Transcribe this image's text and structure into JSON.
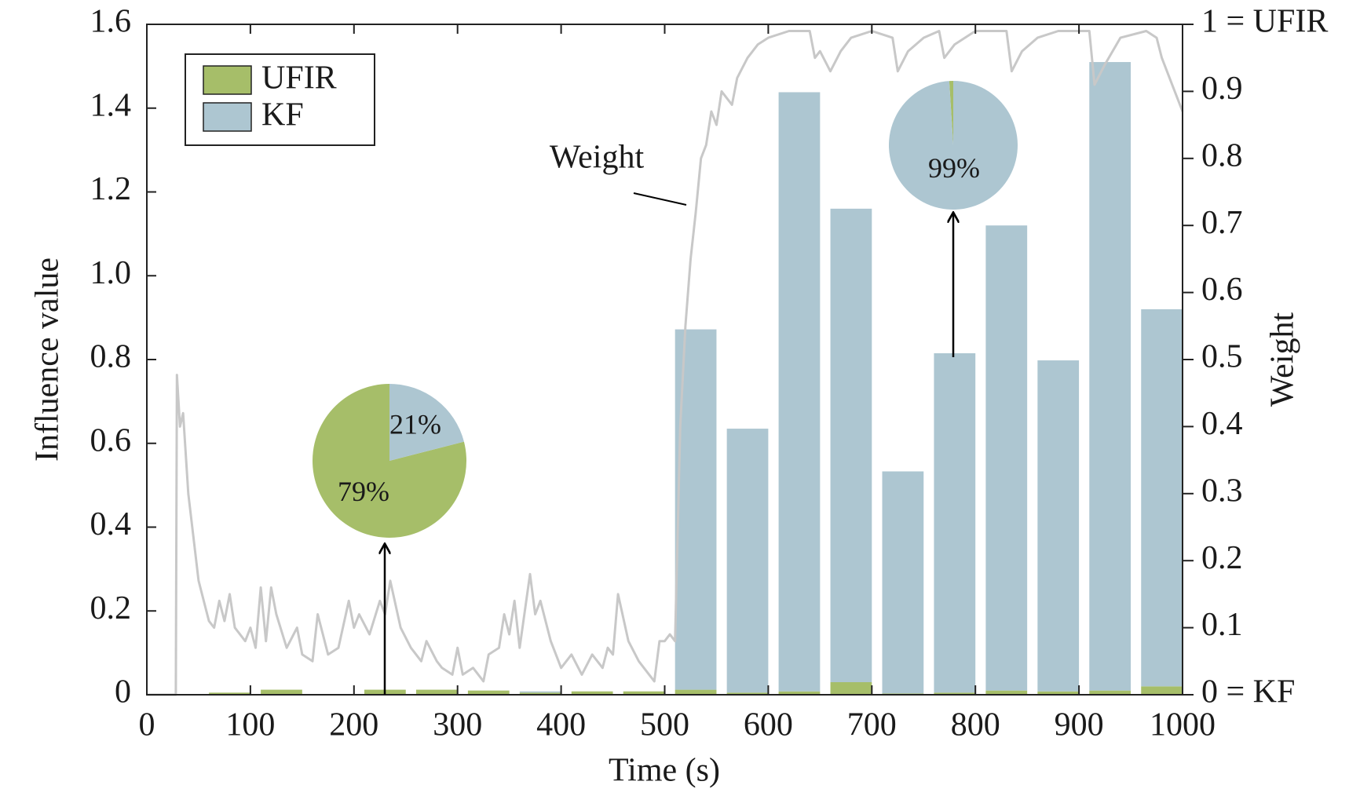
{
  "chart_data": {
    "type": "bar",
    "stacked": true,
    "xlabel": "Time (s)",
    "ylabel": "Influence value",
    "y2label": "Weight",
    "xlim": [
      0,
      1000
    ],
    "xticks": [
      0,
      100,
      200,
      300,
      400,
      500,
      600,
      700,
      800,
      900,
      1000
    ],
    "ylim": [
      0,
      1.6
    ],
    "yticks": [
      0,
      0.2,
      0.4,
      0.6,
      0.8,
      {
        "value": 1,
        "label": "1.0"
      },
      1.2,
      1.4,
      1.6
    ],
    "y2lim": [
      0,
      1
    ],
    "y2ticks": [
      {
        "value": 0,
        "label": "0 = KF"
      },
      0.1,
      0.2,
      0.3,
      0.4,
      0.5,
      0.6,
      0.7,
      0.8,
      0.9,
      {
        "value": 1,
        "label": "1 = UFIR"
      }
    ],
    "legend": "upper left",
    "x": [
      30,
      80,
      130,
      180,
      230,
      280,
      330,
      380,
      430,
      480,
      530,
      580,
      630,
      680,
      730,
      780,
      830,
      880,
      930,
      980
    ],
    "series": [
      {
        "name": "UFIR",
        "color": "#a6be69",
        "values": [
          0,
          0.005,
          0.012,
          0,
          0.012,
          0.012,
          0.01,
          0.005,
          0.008,
          0.008,
          0.012,
          0.005,
          0.008,
          0.03,
          0.003,
          0.005,
          0.01,
          0.008,
          0.01,
          0.02
        ]
      },
      {
        "name": "KF",
        "color": "#adc6d1",
        "values": [
          0,
          0,
          0,
          0,
          0,
          0,
          0,
          0.003,
          0,
          0,
          0.86,
          0.63,
          1.43,
          1.13,
          0.53,
          0.81,
          1.11,
          0.79,
          1.5,
          0.9
        ]
      }
    ],
    "line": {
      "type": "line",
      "name": "Weight",
      "axis": "y2",
      "color": "#c8c8c8",
      "x": [
        0,
        28,
        29,
        32,
        35,
        40,
        50,
        60,
        65,
        70,
        75,
        80,
        85,
        95,
        100,
        105,
        110,
        115,
        120,
        125,
        135,
        145,
        150,
        160,
        165,
        175,
        185,
        195,
        200,
        205,
        215,
        225,
        230,
        235,
        245,
        255,
        265,
        270,
        280,
        285,
        295,
        300,
        305,
        315,
        325,
        330,
        340,
        345,
        350,
        355,
        360,
        370,
        375,
        380,
        390,
        400,
        410,
        420,
        430,
        440,
        445,
        450,
        455,
        465,
        475,
        485,
        490,
        495,
        500,
        505,
        510,
        515,
        520,
        525,
        530,
        535,
        540,
        545,
        550,
        555,
        565,
        570,
        580,
        590,
        600,
        620,
        640,
        645,
        650,
        660,
        670,
        680,
        700,
        720,
        725,
        735,
        750,
        765,
        770,
        780,
        800,
        830,
        835,
        845,
        860,
        880,
        905,
        910,
        915,
        925,
        940,
        965,
        975,
        980,
        985,
        990,
        1000
      ],
      "values": [
        0,
        0,
        0.477,
        0.4,
        0.42,
        0.3,
        0.17,
        0.11,
        0.1,
        0.14,
        0.11,
        0.15,
        0.1,
        0.08,
        0.1,
        0.07,
        0.16,
        0.08,
        0.16,
        0.12,
        0.07,
        0.1,
        0.06,
        0.05,
        0.12,
        0.06,
        0.07,
        0.14,
        0.1,
        0.12,
        0.09,
        0.14,
        0.12,
        0.17,
        0.1,
        0.07,
        0.05,
        0.08,
        0.05,
        0.04,
        0.03,
        0.07,
        0.03,
        0.04,
        0.02,
        0.06,
        0.07,
        0.12,
        0.09,
        0.14,
        0.07,
        0.18,
        0.12,
        0.14,
        0.08,
        0.04,
        0.06,
        0.03,
        0.06,
        0.04,
        0.07,
        0.06,
        0.15,
        0.08,
        0.05,
        0.03,
        0.02,
        0.08,
        0.08,
        0.09,
        0.08,
        0.4,
        0.55,
        0.65,
        0.72,
        0.8,
        0.82,
        0.87,
        0.85,
        0.9,
        0.88,
        0.92,
        0.95,
        0.97,
        0.98,
        0.99,
        0.99,
        0.95,
        0.96,
        0.93,
        0.96,
        0.98,
        0.99,
        0.98,
        0.93,
        0.96,
        0.98,
        0.99,
        0.95,
        0.97,
        0.99,
        0.99,
        0.93,
        0.96,
        0.98,
        0.99,
        0.99,
        0.99,
        0.91,
        0.94,
        0.98,
        0.99,
        0.98,
        0.95,
        0.93,
        0.91,
        0.87
      ]
    },
    "insets": [
      {
        "type": "pie",
        "values": [
          79,
          21
        ],
        "value_labels": [
          "79%",
          "21%"
        ]
      },
      {
        "type": "pie",
        "values": [
          1,
          99
        ],
        "value_labels": [
          null,
          "99%"
        ]
      }
    ]
  }
}
